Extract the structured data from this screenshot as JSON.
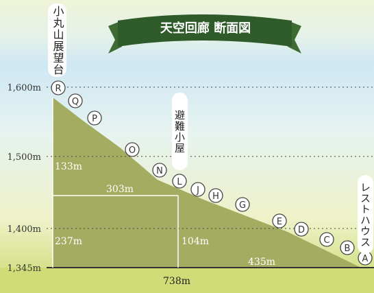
{
  "title": "天空回廊 断面図",
  "axis": {
    "ticks": [
      "1,600m",
      "1,500m",
      "1,400m",
      "1,345m"
    ]
  },
  "places": [
    "小丸山展望台",
    "避難小屋",
    "レストハウス"
  ],
  "waypoints": [
    "R",
    "Q",
    "P",
    "O",
    "N",
    "L",
    "J",
    "H",
    "G",
    "E",
    "D",
    "C",
    "B",
    "A"
  ],
  "dimensions": [
    "133m",
    "303m",
    "237m",
    "104m",
    "435m",
    "738m"
  ]
}
